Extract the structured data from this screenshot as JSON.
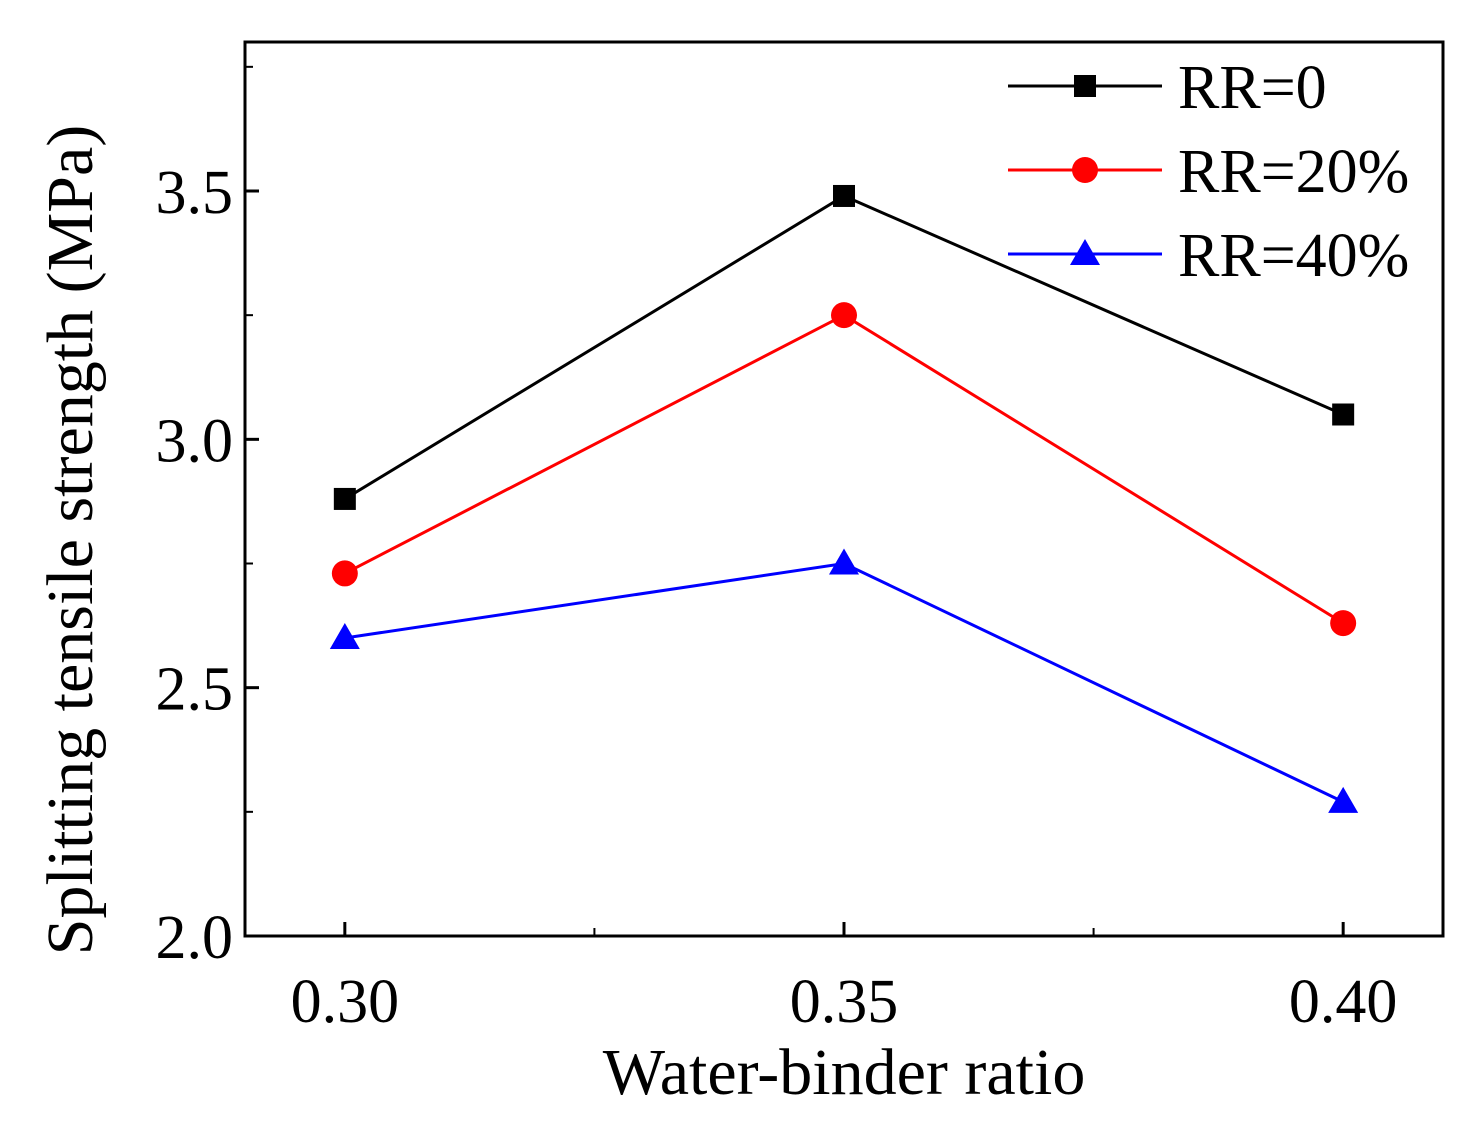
{
  "chart_data": {
    "type": "line",
    "title": "",
    "xlabel": "Water-binder ratio",
    "ylabel": "Splitting tensile strength (MPa)",
    "x": [
      0.3,
      0.35,
      0.4
    ],
    "xtick_labels": [
      "0.30",
      "0.35",
      "0.40"
    ],
    "ytick_labels": [
      "2.0",
      "2.5",
      "3.0",
      "3.5"
    ],
    "yticks": [
      2.0,
      2.5,
      3.0,
      3.5
    ],
    "xlim": [
      0.29,
      0.41
    ],
    "ylim": [
      2.0,
      3.8
    ],
    "grid": false,
    "legend_position": "top-right",
    "series": [
      {
        "name": "RR=0",
        "color": "#000000",
        "marker": "square",
        "values": [
          2.88,
          3.49,
          3.05
        ]
      },
      {
        "name": "RR=20%",
        "color": "#ff0000",
        "marker": "circle",
        "values": [
          2.73,
          3.25,
          2.63
        ]
      },
      {
        "name": "RR=40%",
        "color": "#0000ff",
        "marker": "triangle",
        "values": [
          2.6,
          2.75,
          2.27
        ]
      }
    ]
  }
}
